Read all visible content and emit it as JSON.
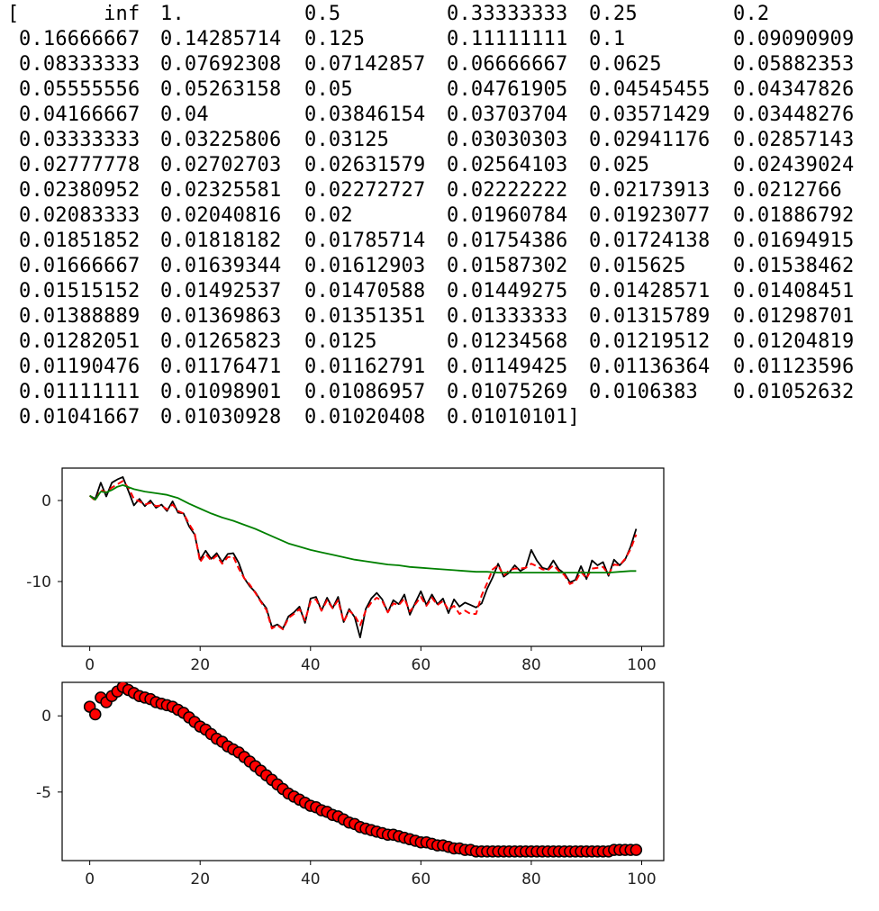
{
  "array_printout": {
    "rows": [
      [
        "[",
        "       inf",
        "1.        ",
        "0.5       ",
        "0.33333333",
        "0.25      ",
        "0.2"
      ],
      [
        "",
        "0.16666667",
        "0.14285714",
        "0.125     ",
        "0.11111111",
        "0.1       ",
        "0.09090909"
      ],
      [
        "",
        "0.08333333",
        "0.07692308",
        "0.07142857",
        "0.06666667",
        "0.0625    ",
        "0.05882353"
      ],
      [
        "",
        "0.05555556",
        "0.05263158",
        "0.05      ",
        "0.04761905",
        "0.04545455",
        "0.04347826"
      ],
      [
        "",
        "0.04166667",
        "0.04      ",
        "0.03846154",
        "0.03703704",
        "0.03571429",
        "0.03448276"
      ],
      [
        "",
        "0.03333333",
        "0.03225806",
        "0.03125   ",
        "0.03030303",
        "0.02941176",
        "0.02857143"
      ],
      [
        "",
        "0.02777778",
        "0.02702703",
        "0.02631579",
        "0.02564103",
        "0.025     ",
        "0.02439024"
      ],
      [
        "",
        "0.02380952",
        "0.02325581",
        "0.02272727",
        "0.02222222",
        "0.02173913",
        "0.0212766"
      ],
      [
        "",
        "0.02083333",
        "0.02040816",
        "0.02      ",
        "0.01960784",
        "0.01923077",
        "0.01886792"
      ],
      [
        "",
        "0.01851852",
        "0.01818182",
        "0.01785714",
        "0.01754386",
        "0.01724138",
        "0.01694915"
      ],
      [
        "",
        "0.01666667",
        "0.01639344",
        "0.01612903",
        "0.01587302",
        "0.015625  ",
        "0.01538462"
      ],
      [
        "",
        "0.01515152",
        "0.01492537",
        "0.01470588",
        "0.01449275",
        "0.01428571",
        "0.01408451"
      ],
      [
        "",
        "0.01388889",
        "0.01369863",
        "0.01351351",
        "0.01333333",
        "0.01315789",
        "0.01298701"
      ],
      [
        "",
        "0.01282051",
        "0.01265823",
        "0.0125    ",
        "0.01234568",
        "0.01219512",
        "0.01204819"
      ],
      [
        "",
        "0.01190476",
        "0.01176471",
        "0.01162791",
        "0.01149425",
        "0.01136364",
        "0.01123596"
      ],
      [
        "",
        "0.01111111",
        "0.01098901",
        "0.01086957",
        "0.01075269",
        "0.0106383 ",
        "0.01052632"
      ],
      [
        "",
        "0.01041667",
        "0.01030928",
        "0.01020408",
        "0.01010101]"
      ]
    ]
  },
  "chart_data": [
    {
      "type": "line",
      "title": "",
      "xlabel": "",
      "ylabel": "",
      "xlim": [
        -5,
        104
      ],
      "ylim": [
        -18,
        4
      ],
      "xticks": [
        "0",
        "20",
        "40",
        "60",
        "80",
        "100"
      ],
      "yticks": [
        "0",
        "-10"
      ],
      "grid": false,
      "series": [
        {
          "color": "#000000",
          "style": "solid",
          "x": [
            0,
            1,
            2,
            3,
            4,
            5,
            6,
            7,
            8,
            9,
            10,
            11,
            12,
            13,
            14,
            15,
            16,
            17,
            18,
            19,
            20,
            21,
            22,
            23,
            24,
            25,
            26,
            27,
            28,
            29,
            30,
            31,
            32,
            33,
            34,
            35,
            36,
            37,
            38,
            39,
            40,
            41,
            42,
            43,
            44,
            45,
            46,
            47,
            48,
            49,
            50,
            51,
            52,
            53,
            54,
            55,
            56,
            57,
            58,
            59,
            60,
            61,
            62,
            63,
            64,
            65,
            66,
            67,
            68,
            69,
            70,
            71,
            72,
            73,
            74,
            75,
            76,
            77,
            78,
            79,
            80,
            81,
            82,
            83,
            84,
            85,
            86,
            87,
            88,
            89,
            90,
            91,
            92,
            93,
            94,
            95,
            96,
            97,
            98,
            99
          ],
          "y": [
            0.6,
            0.2,
            2.2,
            0.5,
            2.2,
            2.6,
            2.9,
            1.2,
            -0.6,
            0.2,
            -0.7,
            0,
            -0.9,
            -0.5,
            -1.3,
            -0.1,
            -1.5,
            -1.6,
            -3.2,
            -4.2,
            -7.3,
            -6.2,
            -7.2,
            -6.5,
            -7.6,
            -6.6,
            -6.5,
            -7.7,
            -9.6,
            -10.6,
            -11.3,
            -12.4,
            -13.3,
            -15.6,
            -15.3,
            -15.8,
            -14.3,
            -13.8,
            -13.1,
            -15.1,
            -12.1,
            -11.9,
            -13.6,
            -12.0,
            -13.3,
            -11.9,
            -15.0,
            -13.4,
            -14.4,
            -16.9,
            -13.4,
            -12.1,
            -11.4,
            -12.2,
            -13.8,
            -12.3,
            -12.8,
            -11.6,
            -14.1,
            -12.6,
            -11.2,
            -12.9,
            -11.6,
            -12.8,
            -12.1,
            -13.9,
            -12.2,
            -13.1,
            -12.6,
            -12.9,
            -13.2,
            -12.7,
            -10.9,
            -9.5,
            -7.8,
            -9.4,
            -8.9,
            -8.0,
            -8.7,
            -8.3,
            -6.1,
            -7.4,
            -8.3,
            -8.5,
            -7.4,
            -8.5,
            -9.0,
            -10.1,
            -9.8,
            -8.1,
            -9.7,
            -7.4,
            -8.0,
            -7.6,
            -9.3,
            -7.3,
            -8.0,
            -7.3,
            -5.7,
            -3.5
          ]
        },
        {
          "color": "#ff0000",
          "style": "dashed",
          "x": [
            0,
            1,
            2,
            3,
            4,
            5,
            6,
            7,
            8,
            9,
            10,
            11,
            12,
            13,
            14,
            15,
            16,
            17,
            18,
            19,
            20,
            21,
            22,
            23,
            24,
            25,
            26,
            27,
            28,
            29,
            30,
            31,
            32,
            33,
            34,
            35,
            36,
            37,
            38,
            39,
            40,
            41,
            42,
            43,
            44,
            45,
            46,
            47,
            48,
            49,
            50,
            51,
            52,
            53,
            54,
            55,
            56,
            57,
            58,
            59,
            60,
            61,
            62,
            63,
            64,
            65,
            66,
            67,
            68,
            69,
            70,
            71,
            72,
            73,
            74,
            75,
            76,
            77,
            78,
            79,
            80,
            81,
            82,
            83,
            84,
            85,
            86,
            87,
            88,
            89,
            90,
            91,
            92,
            93,
            94,
            95,
            96,
            97,
            98,
            99
          ],
          "y": [
            0.6,
            0,
            1.3,
            1.0,
            1.6,
            2.0,
            2.4,
            1.6,
            0.2,
            -0.1,
            -0.5,
            -0.3,
            -0.7,
            -0.6,
            -1.1,
            -0.5,
            -1.3,
            -1.6,
            -2.9,
            -4.0,
            -7.6,
            -6.6,
            -7.4,
            -6.8,
            -7.8,
            -7.0,
            -6.9,
            -8.4,
            -9.6,
            -10.4,
            -11.4,
            -12.5,
            -13.5,
            -15.8,
            -15.4,
            -15.9,
            -14.5,
            -14.0,
            -13.4,
            -14.8,
            -12.5,
            -12.2,
            -13.6,
            -12.3,
            -13.3,
            -12.3,
            -15.0,
            -13.6,
            -14.2,
            -15.4,
            -13.6,
            -12.6,
            -12.0,
            -12.4,
            -13.8,
            -12.7,
            -12.9,
            -12.1,
            -13.7,
            -12.8,
            -11.9,
            -13.0,
            -12.0,
            -12.9,
            -12.4,
            -13.5,
            -13.0,
            -14.0,
            -13.6,
            -14.0,
            -14.0,
            -11.7,
            -10.2,
            -8.5,
            -8.0,
            -9.3,
            -8.6,
            -8.4,
            -8.4,
            -8.3,
            -7.8,
            -8.1,
            -8.5,
            -8.6,
            -8.0,
            -8.7,
            -9.2,
            -10.3,
            -10.0,
            -8.8,
            -9.6,
            -8.4,
            -8.3,
            -8.2,
            -9.1,
            -7.9,
            -8.0,
            -7.2,
            -6.0,
            -4.2
          ]
        },
        {
          "color": "#008000",
          "style": "solid",
          "x": [
            0,
            1,
            2,
            3,
            4,
            5,
            6,
            8,
            10,
            12,
            14,
            16,
            18,
            20,
            22,
            24,
            26,
            28,
            30,
            32,
            34,
            36,
            38,
            40,
            42,
            44,
            46,
            48,
            50,
            52,
            54,
            56,
            58,
            60,
            62,
            64,
            66,
            68,
            70,
            72,
            74,
            76,
            78,
            80,
            82,
            84,
            86,
            88,
            90,
            92,
            94,
            96,
            98,
            99
          ],
          "y": [
            0.6,
            0.1,
            1.1,
            1.0,
            1.3,
            1.7,
            1.9,
            1.4,
            1.1,
            0.9,
            0.7,
            0.3,
            -0.4,
            -1.0,
            -1.6,
            -2.1,
            -2.5,
            -3.0,
            -3.5,
            -4.1,
            -4.7,
            -5.3,
            -5.7,
            -6.1,
            -6.4,
            -6.7,
            -7.0,
            -7.3,
            -7.5,
            -7.7,
            -7.9,
            -8.0,
            -8.2,
            -8.3,
            -8.4,
            -8.5,
            -8.6,
            -8.7,
            -8.8,
            -8.8,
            -8.9,
            -8.9,
            -8.9,
            -8.9,
            -8.9,
            -8.9,
            -8.9,
            -8.9,
            -8.9,
            -8.9,
            -8.9,
            -8.8,
            -8.7,
            -8.7
          ]
        }
      ]
    },
    {
      "type": "scatter",
      "title": "",
      "xlabel": "",
      "ylabel": "",
      "xlim": [
        -5,
        104
      ],
      "ylim": [
        -9.5,
        2.2
      ],
      "xticks": [
        "0",
        "20",
        "40",
        "60",
        "80",
        "100"
      ],
      "yticks": [
        "0",
        "-5"
      ],
      "grid": false,
      "series": [
        {
          "marker_face": "#ff0000",
          "marker_edge": "#000000",
          "x": [
            0,
            1,
            2,
            3,
            4,
            5,
            6,
            7,
            8,
            9,
            10,
            11,
            12,
            13,
            14,
            15,
            16,
            17,
            18,
            19,
            20,
            21,
            22,
            23,
            24,
            25,
            26,
            27,
            28,
            29,
            30,
            31,
            32,
            33,
            34,
            35,
            36,
            37,
            38,
            39,
            40,
            41,
            42,
            43,
            44,
            45,
            46,
            47,
            48,
            49,
            50,
            51,
            52,
            53,
            54,
            55,
            56,
            57,
            58,
            59,
            60,
            61,
            62,
            63,
            64,
            65,
            66,
            67,
            68,
            69,
            70,
            71,
            72,
            73,
            74,
            75,
            76,
            77,
            78,
            79,
            80,
            81,
            82,
            83,
            84,
            85,
            86,
            87,
            88,
            89,
            90,
            91,
            92,
            93,
            94,
            95,
            96,
            97,
            98,
            99
          ],
          "y": [
            0.6,
            0.1,
            1.2,
            0.9,
            1.3,
            1.6,
            1.9,
            1.7,
            1.5,
            1.3,
            1.2,
            1.1,
            0.9,
            0.8,
            0.7,
            0.6,
            0.4,
            0.2,
            -0.1,
            -0.4,
            -0.7,
            -0.9,
            -1.2,
            -1.5,
            -1.7,
            -2.0,
            -2.2,
            -2.4,
            -2.7,
            -3.0,
            -3.3,
            -3.6,
            -3.9,
            -4.2,
            -4.5,
            -4.8,
            -5.1,
            -5.3,
            -5.5,
            -5.7,
            -5.9,
            -6.0,
            -6.2,
            -6.3,
            -6.5,
            -6.6,
            -6.8,
            -7.0,
            -7.1,
            -7.3,
            -7.4,
            -7.5,
            -7.6,
            -7.7,
            -7.8,
            -7.8,
            -7.9,
            -8.0,
            -8.1,
            -8.2,
            -8.3,
            -8.3,
            -8.4,
            -8.5,
            -8.5,
            -8.6,
            -8.7,
            -8.7,
            -8.8,
            -8.8,
            -8.9,
            -8.9,
            -8.9,
            -8.9,
            -8.9,
            -8.9,
            -8.9,
            -8.9,
            -8.9,
            -8.9,
            -8.9,
            -8.9,
            -8.9,
            -8.9,
            -8.9,
            -8.9,
            -8.9,
            -8.9,
            -8.9,
            -8.9,
            -8.9,
            -8.9,
            -8.9,
            -8.9,
            -8.9,
            -8.8,
            -8.8,
            -8.8,
            -8.8,
            -8.8
          ]
        }
      ]
    }
  ]
}
